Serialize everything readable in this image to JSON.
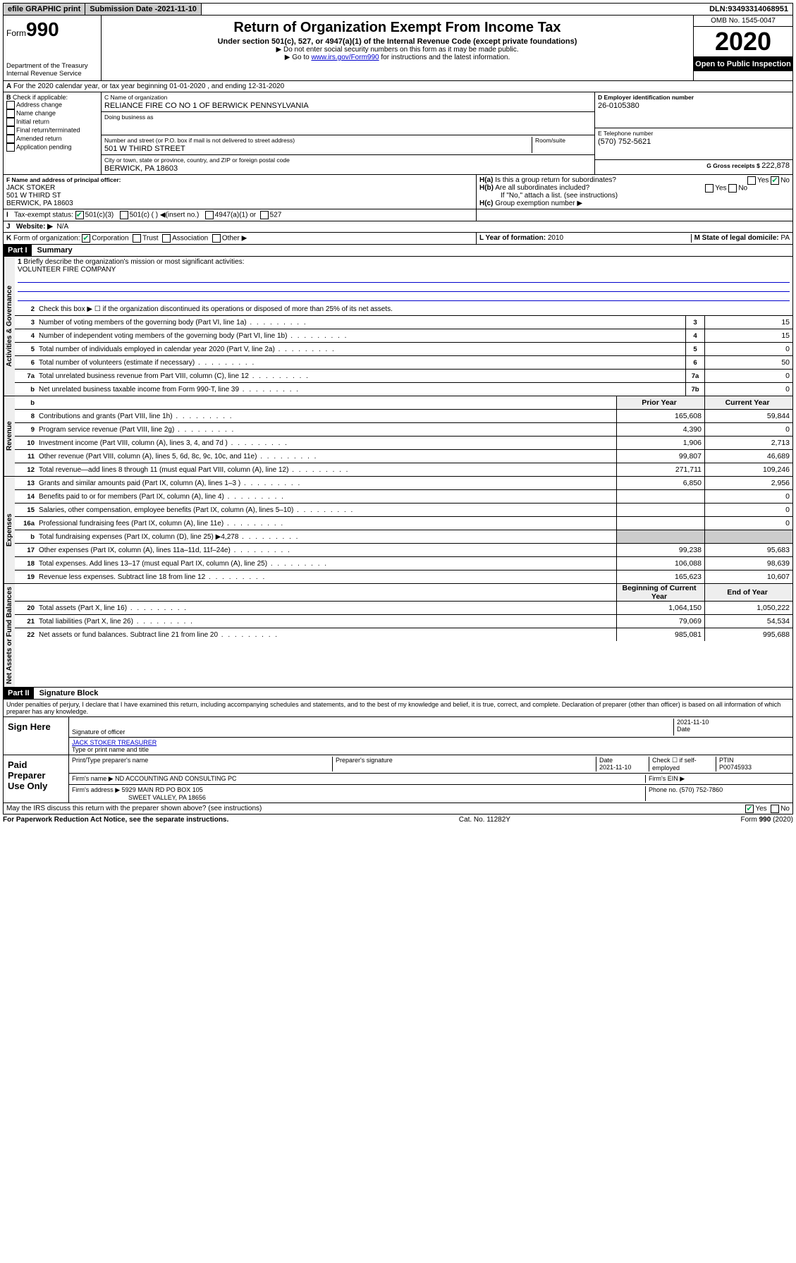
{
  "topbar": {
    "efile": "efile GRAPHIC print",
    "subdate_label": "Submission Date - ",
    "subdate": "2021-11-10",
    "dln_label": "DLN: ",
    "dln": "93493314068951"
  },
  "header": {
    "form_prefix": "Form",
    "form_no": "990",
    "dept": "Department of the Treasury\nInternal Revenue Service",
    "title": "Return of Organization Exempt From Income Tax",
    "subtitle": "Under section 501(c), 527, or 4947(a)(1) of the Internal Revenue Code (except private foundations)",
    "note1": "▶ Do not enter social security numbers on this form as it may be made public.",
    "note2_pre": "▶ Go to ",
    "note2_link": "www.irs.gov/Form990",
    "note2_post": " for instructions and the latest information.",
    "omb": "OMB No. 1545-0047",
    "year": "2020",
    "open": "Open to Public Inspection"
  },
  "periodA": "For the 2020 calendar year, or tax year beginning 01-01-2020    , and ending 12-31-2020",
  "boxB": {
    "label": "Check if applicable:",
    "items": [
      "Address change",
      "Name change",
      "Initial return",
      "Final return/terminated",
      "Amended return",
      "Application pending"
    ]
  },
  "boxC": {
    "name_label": "C Name of organization",
    "name": "RELIANCE FIRE CO NO 1 OF BERWICK PENNSYLVANIA",
    "dba_label": "Doing business as",
    "addr_label": "Number and street (or P.O. box if mail is not delivered to street address)",
    "room_label": "Room/suite",
    "addr": "501 W THIRD STREET",
    "city_label": "City or town, state or province, country, and ZIP or foreign postal code",
    "city": "BERWICK, PA  18603"
  },
  "boxD": {
    "label": "D Employer identification number",
    "val": "26-0105380"
  },
  "boxE": {
    "label": "E Telephone number",
    "val": "(570) 752-5621"
  },
  "boxG": {
    "label": "G Gross receipts $ ",
    "val": "222,878"
  },
  "boxF": {
    "label": "F  Name and address of principal officer:",
    "name": "JACK STOKER",
    "addr1": "501 W THIRD ST",
    "addr2": "BERWICK, PA  18603"
  },
  "boxH": {
    "a": "Is this a group return for subordinates?",
    "b": "Are all subordinates included?",
    "bnote": "If \"No,\" attach a list. (see instructions)",
    "c": "Group exemption number ▶"
  },
  "taxexempt": {
    "label": "Tax-exempt status:",
    "opt1": "501(c)(3)",
    "opt2": "501(c) (  ) ◀(insert no.)",
    "opt3": "4947(a)(1) or",
    "opt4": "527"
  },
  "websiteJ": {
    "label": "Website: ▶",
    "val": "N/A"
  },
  "lineK": "Form of organization:",
  "lineK_opts": [
    "Corporation",
    "Trust",
    "Association",
    "Other ▶"
  ],
  "boxL": {
    "label": "L Year of formation: ",
    "val": "2010"
  },
  "boxM": {
    "label": "M State of legal domicile: ",
    "val": "PA"
  },
  "part1": {
    "label": "Part I",
    "title": "Summary"
  },
  "mission_label": "Briefly describe the organization's mission or most significant activities:",
  "mission": "VOLUNTEER FIRE COMPANY",
  "line2": "Check this box ▶ ☐ if the organization discontinued its operations or disposed of more than 25% of its net assets.",
  "tabs": {
    "gov": "Activities & Governance",
    "rev": "Revenue",
    "exp": "Expenses",
    "net": "Net Assets or Fund Balances"
  },
  "govlines": [
    {
      "n": "3",
      "d": "Number of voting members of the governing body (Part VI, line 1a)",
      "c": "3",
      "v": "15"
    },
    {
      "n": "4",
      "d": "Number of independent voting members of the governing body (Part VI, line 1b)",
      "c": "4",
      "v": "15"
    },
    {
      "n": "5",
      "d": "Total number of individuals employed in calendar year 2020 (Part V, line 2a)",
      "c": "5",
      "v": "0"
    },
    {
      "n": "6",
      "d": "Total number of volunteers (estimate if necessary)",
      "c": "6",
      "v": "50"
    },
    {
      "n": "7a",
      "d": "Total unrelated business revenue from Part VIII, column (C), line 12",
      "c": "7a",
      "v": "0"
    },
    {
      "n": "b",
      "d": "Net unrelated business taxable income from Form 990-T, line 39",
      "c": "7b",
      "v": "0"
    }
  ],
  "col_prior": "Prior Year",
  "col_curr": "Current Year",
  "revlines": [
    {
      "n": "8",
      "d": "Contributions and grants (Part VIII, line 1h)",
      "p": "165,608",
      "c": "59,844"
    },
    {
      "n": "9",
      "d": "Program service revenue (Part VIII, line 2g)",
      "p": "4,390",
      "c": "0"
    },
    {
      "n": "10",
      "d": "Investment income (Part VIII, column (A), lines 3, 4, and 7d )",
      "p": "1,906",
      "c": "2,713"
    },
    {
      "n": "11",
      "d": "Other revenue (Part VIII, column (A), lines 5, 6d, 8c, 9c, 10c, and 11e)",
      "p": "99,807",
      "c": "46,689"
    },
    {
      "n": "12",
      "d": "Total revenue—add lines 8 through 11 (must equal Part VIII, column (A), line 12)",
      "p": "271,711",
      "c": "109,246"
    }
  ],
  "explines": [
    {
      "n": "13",
      "d": "Grants and similar amounts paid (Part IX, column (A), lines 1–3 )",
      "p": "6,850",
      "c": "2,956"
    },
    {
      "n": "14",
      "d": "Benefits paid to or for members (Part IX, column (A), line 4)",
      "p": "",
      "c": "0"
    },
    {
      "n": "15",
      "d": "Salaries, other compensation, employee benefits (Part IX, column (A), lines 5–10)",
      "p": "",
      "c": "0"
    },
    {
      "n": "16a",
      "d": "Professional fundraising fees (Part IX, column (A), line 11e)",
      "p": "",
      "c": "0"
    },
    {
      "n": "b",
      "d": "Total fundraising expenses (Part IX, column (D), line 25) ▶4,278",
      "p": "shade",
      "c": "shade"
    },
    {
      "n": "17",
      "d": "Other expenses (Part IX, column (A), lines 11a–11d, 11f–24e)",
      "p": "99,238",
      "c": "95,683"
    },
    {
      "n": "18",
      "d": "Total expenses. Add lines 13–17 (must equal Part IX, column (A), line 25)",
      "p": "106,088",
      "c": "98,639"
    },
    {
      "n": "19",
      "d": "Revenue less expenses. Subtract line 18 from line 12",
      "p": "165,623",
      "c": "10,607"
    }
  ],
  "col_begin": "Beginning of Current Year",
  "col_end": "End of Year",
  "netlines": [
    {
      "n": "20",
      "d": "Total assets (Part X, line 16)",
      "p": "1,064,150",
      "c": "1,050,222"
    },
    {
      "n": "21",
      "d": "Total liabilities (Part X, line 26)",
      "p": "79,069",
      "c": "54,534"
    },
    {
      "n": "22",
      "d": "Net assets or fund balances. Subtract line 21 from line 20",
      "p": "985,081",
      "c": "995,688"
    }
  ],
  "part2": {
    "label": "Part II",
    "title": "Signature Block"
  },
  "penalty": "Under penalties of perjury, I declare that I have examined this return, including accompanying schedules and statements, and to the best of my knowledge and belief, it is true, correct, and complete. Declaration of preparer (other than officer) is based on all information of which preparer has any knowledge.",
  "sign": {
    "here": "Sign Here",
    "sig_officer": "Signature of officer",
    "date": "2021-11-10",
    "date_label": "Date",
    "name": "JACK STOKER  TREASURER",
    "name_label": "Type or print name and title"
  },
  "paid": {
    "label": "Paid Preparer Use Only",
    "h1": "Print/Type preparer's name",
    "h2": "Preparer's signature",
    "h3": "Date",
    "h3v": "2021-11-10",
    "h4": "Check ☐ if self-employed",
    "h5": "PTIN",
    "ptin": "P00745933",
    "firm_label": "Firm's name    ▶",
    "firm": "ND ACCOUNTING AND CONSULTING PC",
    "ein_label": "Firm's EIN ▶",
    "addr_label": "Firm's address ▶",
    "addr1": "5929 MAIN RD PO BOX 105",
    "addr2": "SWEET VALLEY, PA  18656",
    "phone_label": "Phone no. ",
    "phone": "(570) 752-7860"
  },
  "discuss": "May the IRS discuss this return with the preparer shown above? (see instructions)",
  "footer": {
    "left": "For Paperwork Reduction Act Notice, see the separate instructions.",
    "mid": "Cat. No. 11282Y",
    "right": "Form 990 (2020)"
  }
}
